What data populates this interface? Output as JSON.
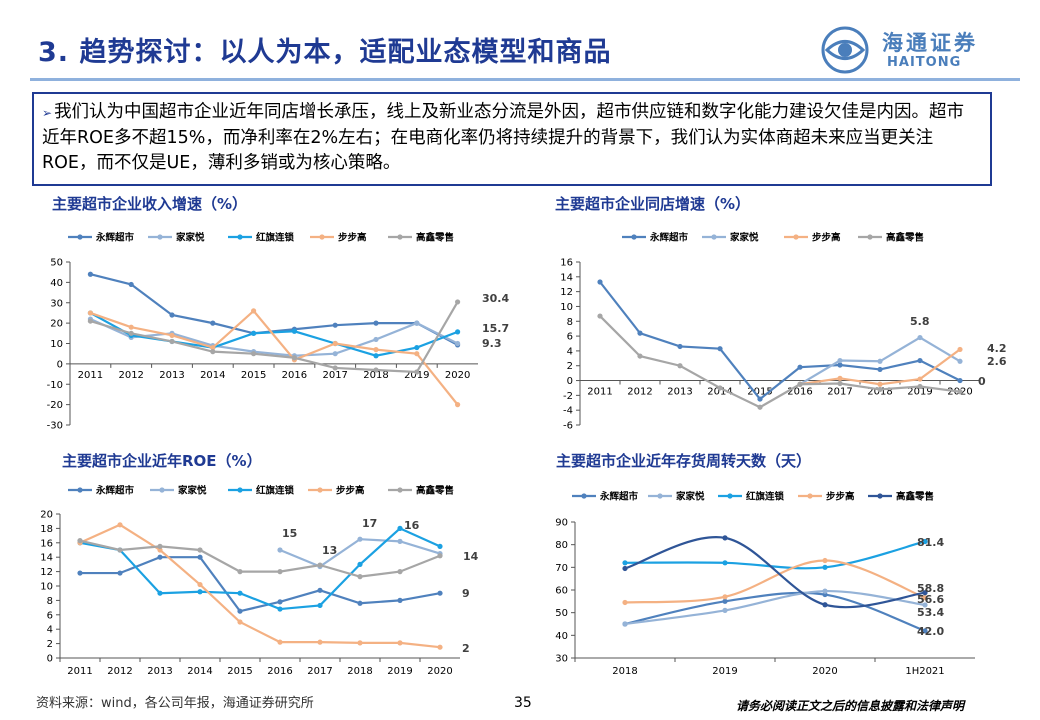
{
  "header": {
    "title": "3. 趋势探讨：以人为本，适配业态模型和商品",
    "logo_cn": "海通证券",
    "logo_en": "HAITONG"
  },
  "summary": {
    "bullet": "➢",
    "text": "我们认为中国超市企业近年同店增长承压，线上及新业态分流是外因，超市供应链和数字化能力建设欠佳是内因。超市近年ROE多不超15%，而净利率在2%左右；在电商化率仍将持续提升的背景下，我们认为实体商超未来应当更关注ROE，而不仅是UE，薄利多销或为核心策略。"
  },
  "colors": {
    "永辉超市": "#4f81bd",
    "家家悦": "#95b3d7",
    "红旗连锁": "#1ba1e2",
    "步步高": "#f4b183",
    "高鑫零售": "#a6a6a6",
    "高鑫零售_chart4": "#2f5597"
  },
  "chart_data": [
    {
      "type": "line",
      "title": "主要超市企业收入增速（%）",
      "x": [
        "2011",
        "2012",
        "2013",
        "2014",
        "2015",
        "2016",
        "2017",
        "2018",
        "2019",
        "2020"
      ],
      "ylim": [
        -30,
        50
      ],
      "yticks": [
        -30,
        -20,
        -10,
        0,
        10,
        20,
        30,
        40,
        50
      ],
      "series": [
        {
          "name": "永辉超市",
          "values": [
            44,
            39,
            24,
            20,
            15,
            17,
            19,
            20,
            20,
            9.3
          ]
        },
        {
          "name": "家家悦",
          "values": [
            22,
            13,
            15,
            9,
            6,
            4,
            5,
            12,
            20,
            10
          ]
        },
        {
          "name": "红旗连锁",
          "values": [
            25,
            14,
            11,
            8,
            15,
            16,
            10,
            4,
            8,
            15.7
          ]
        },
        {
          "name": "步步高",
          "values": [
            25,
            18,
            14,
            8,
            26,
            2,
            10,
            7,
            5,
            -20
          ]
        },
        {
          "name": "高鑫零售",
          "values": [
            21,
            15,
            11,
            6,
            5,
            3,
            -2,
            -3,
            -4,
            30.4
          ]
        }
      ],
      "data_labels": [
        "30.4",
        "15.7",
        "9.3"
      ]
    },
    {
      "type": "line",
      "title": "主要超市企业同店增速（%）",
      "x": [
        "2011",
        "2012",
        "2013",
        "2014",
        "2015",
        "2016",
        "2017",
        "2018",
        "2019",
        "2020"
      ],
      "ylim": [
        -6,
        16
      ],
      "yticks": [
        -6,
        -4,
        -2,
        0,
        2,
        4,
        6,
        8,
        10,
        12,
        14,
        16
      ],
      "series": [
        {
          "name": "永辉超市",
          "values": [
            13.3,
            6.4,
            4.6,
            4.3,
            -2.5,
            1.8,
            2.1,
            1.5,
            2.7,
            0
          ]
        },
        {
          "name": "家家悦",
          "values": [
            null,
            null,
            null,
            null,
            null,
            -0.5,
            2.7,
            2.6,
            5.8,
            2.6
          ]
        },
        {
          "name": "步步高",
          "values": [
            null,
            null,
            null,
            null,
            null,
            -0.5,
            0.3,
            -0.5,
            0.2,
            4.2
          ]
        },
        {
          "name": "高鑫零售",
          "values": [
            8.7,
            3.3,
            2,
            -1,
            -3.6,
            -0.5,
            -0.4,
            -1.2,
            -0.8,
            -1.5
          ]
        }
      ],
      "data_labels": [
        "5.8",
        "4.2",
        "2.6",
        "0"
      ]
    },
    {
      "type": "line",
      "title": "主要超市企业近年ROE（%）",
      "x": [
        "2011",
        "2012",
        "2013",
        "2014",
        "2015",
        "2016",
        "2017",
        "2018",
        "2019",
        "2020"
      ],
      "ylim": [
        0,
        20
      ],
      "yticks": [
        0,
        2,
        4,
        6,
        8,
        10,
        12,
        14,
        16,
        18,
        20
      ],
      "series": [
        {
          "name": "永辉超市",
          "values": [
            11.8,
            11.8,
            14,
            14,
            6.5,
            7.8,
            9.4,
            7.6,
            8,
            9
          ]
        },
        {
          "name": "家家悦",
          "values": [
            null,
            null,
            null,
            null,
            null,
            15,
            12.7,
            16.5,
            16.2,
            14.5
          ]
        },
        {
          "name": "红旗连锁",
          "values": [
            16,
            15,
            9,
            9.2,
            9,
            6.8,
            7.3,
            13,
            18,
            15.5
          ]
        },
        {
          "name": "步步高",
          "values": [
            16,
            18.5,
            15,
            10.2,
            5,
            2.2,
            2.2,
            2.1,
            2.1,
            1.5
          ]
        },
        {
          "name": "高鑫零售",
          "values": [
            16.3,
            15,
            15.5,
            15,
            12,
            12,
            12.9,
            11.3,
            12,
            14.2
          ]
        }
      ],
      "data_labels": [
        "15",
        "13",
        "17",
        "16",
        "14",
        "9",
        "2"
      ]
    },
    {
      "type": "line",
      "title": "主要超市企业近年存货周转天数（天）",
      "x": [
        "2018",
        "2019",
        "2020",
        "1H2021"
      ],
      "ylim": [
        30,
        90
      ],
      "yticks": [
        30,
        40,
        50,
        60,
        70,
        80,
        90
      ],
      "series": [
        {
          "name": "永辉超市",
          "values": [
            45,
            55,
            58,
            42
          ]
        },
        {
          "name": "家家悦",
          "values": [
            45,
            51,
            59.5,
            53.4
          ]
        },
        {
          "name": "红旗连锁",
          "values": [
            72,
            72,
            70,
            81.4
          ]
        },
        {
          "name": "步步高",
          "values": [
            54.5,
            57,
            73,
            56.6
          ]
        },
        {
          "name": "高鑫零售",
          "values": [
            69.5,
            83,
            53.5,
            58.8
          ]
        }
      ],
      "data_labels": [
        "81.4",
        "58.8",
        "56.6",
        "53.4",
        "42.0"
      ]
    }
  ],
  "footer": {
    "source": "资料来源：wind，各公司年报，海通证券研究所",
    "page": "35",
    "disclaimer": "请务必阅读正文之后的信息披露和法律声明"
  }
}
